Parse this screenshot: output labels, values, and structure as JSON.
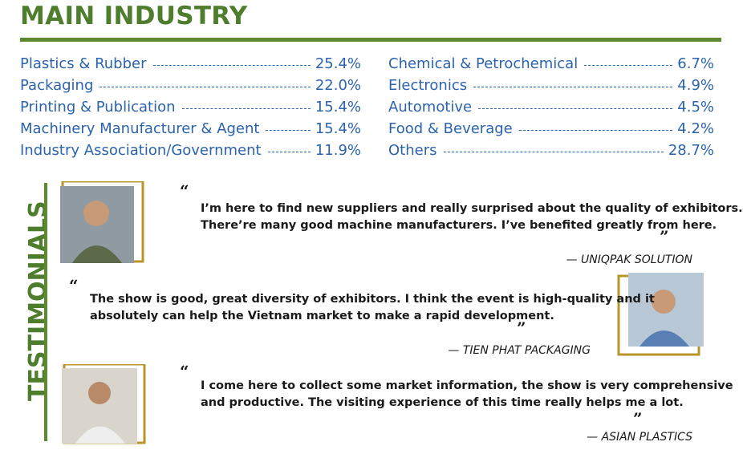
{
  "header": {
    "title": "MAIN INDUSTRY"
  },
  "industries": {
    "left": [
      {
        "label": "Plastics & Rubber",
        "value": "25.4%"
      },
      {
        "label": "Packaging",
        "value": "22.0%"
      },
      {
        "label": "Printing & Publication",
        "value": "15.4%"
      },
      {
        "label": "Machinery Manufacturer & Agent",
        "value": "15.4%"
      },
      {
        "label": "Industry Association/Government",
        "value": "11.9%"
      }
    ],
    "right": [
      {
        "label": "Chemical & Petrochemical",
        "value": "6.7%"
      },
      {
        "label": "Electronics",
        "value": "4.9%"
      },
      {
        "label": "Automotive",
        "value": "4.5%"
      },
      {
        "label": "Food & Beverage",
        "value": "4.2%"
      },
      {
        "label": "Others",
        "value": "28.7%"
      }
    ]
  },
  "testimonials": {
    "heading": "TESTIMONIALS",
    "items": [
      {
        "lines": [
          "I’m here to find new suppliers and really surprised about the quality of exhibitors.",
          "There’re many good machine manufacturers. I’ve benefited greatly from here."
        ],
        "author": "— UNIQPAK SOLUTION"
      },
      {
        "lines": [
          "The show is good, great diversity of exhibitors. I think the event is high-quality and it",
          "absolutely can help the Vietnam market to make a rapid development."
        ],
        "author": "— TIEN PHAT PACKAGING"
      },
      {
        "lines": [
          "I come here to collect some market information, the show is very comprehensive",
          "and productive. The visiting experience of this time really helps me a lot."
        ],
        "author": "— ASIAN PLASTICS"
      }
    ]
  }
}
